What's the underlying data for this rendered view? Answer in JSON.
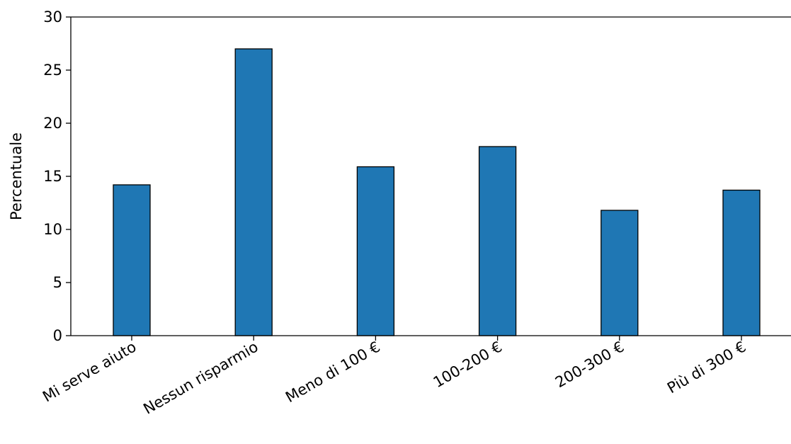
{
  "chart_data": {
    "type": "bar",
    "title": "",
    "xlabel": "",
    "ylabel": "Percentuale",
    "categories": [
      "Mi serve aiuto",
      "Nessun risparmio",
      "Meno di 100 €",
      "100-200 €",
      "200-300 €",
      "Più di 300 €"
    ],
    "values": [
      14.2,
      27.0,
      15.9,
      17.8,
      11.8,
      13.7
    ],
    "ylim": [
      0,
      30
    ],
    "yticks": [
      0,
      5,
      10,
      15,
      20,
      25,
      30
    ],
    "grid": false,
    "bar_color": "#1f77b4",
    "edge_color": "#000000"
  }
}
